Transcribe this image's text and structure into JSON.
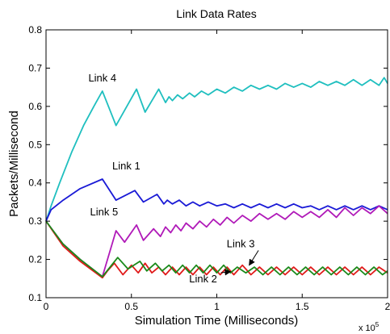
{
  "chart_data": {
    "type": "line",
    "title": "Link Data Rates",
    "xlabel": "Simulation Time (Milliseconds)",
    "ylabel": "Packets/Millisecond",
    "x_multiplier": "x 10",
    "x_multiplier_exp": "5",
    "xlim": [
      0,
      2
    ],
    "ylim": [
      0.1,
      0.8
    ],
    "x_ticks": [
      0,
      0.5,
      1,
      1.5,
      2
    ],
    "x_tick_labels": [
      "0",
      "0.5",
      "1",
      "1.5",
      "2"
    ],
    "y_ticks": [
      0.1,
      0.2,
      0.3,
      0.4,
      0.5,
      0.6,
      0.7,
      0.8
    ],
    "y_tick_labels": [
      "0.1",
      "0.2",
      "0.3",
      "0.4",
      "0.5",
      "0.6",
      "0.7",
      "0.8"
    ],
    "grid": false,
    "series": [
      {
        "name": "Link 4",
        "color": "#1fbfbf",
        "values": [
          [
            0,
            0.3
          ],
          [
            0.03,
            0.34
          ],
          [
            0.08,
            0.4
          ],
          [
            0.15,
            0.48
          ],
          [
            0.22,
            0.55
          ],
          [
            0.28,
            0.6
          ],
          [
            0.33,
            0.64
          ],
          [
            0.41,
            0.55
          ],
          [
            0.53,
            0.645
          ],
          [
            0.58,
            0.585
          ],
          [
            0.66,
            0.645
          ],
          [
            0.7,
            0.61
          ],
          [
            0.72,
            0.625
          ],
          [
            0.74,
            0.615
          ],
          [
            0.77,
            0.63
          ],
          [
            0.8,
            0.62
          ],
          [
            0.84,
            0.635
          ],
          [
            0.87,
            0.625
          ],
          [
            0.91,
            0.64
          ],
          [
            0.95,
            0.63
          ],
          [
            1.0,
            0.645
          ],
          [
            1.05,
            0.635
          ],
          [
            1.1,
            0.65
          ],
          [
            1.15,
            0.64
          ],
          [
            1.2,
            0.655
          ],
          [
            1.25,
            0.645
          ],
          [
            1.3,
            0.655
          ],
          [
            1.35,
            0.645
          ],
          [
            1.4,
            0.66
          ],
          [
            1.45,
            0.65
          ],
          [
            1.5,
            0.66
          ],
          [
            1.55,
            0.65
          ],
          [
            1.6,
            0.665
          ],
          [
            1.65,
            0.655
          ],
          [
            1.7,
            0.665
          ],
          [
            1.75,
            0.655
          ],
          [
            1.8,
            0.67
          ],
          [
            1.85,
            0.655
          ],
          [
            1.9,
            0.67
          ],
          [
            1.95,
            0.655
          ],
          [
            1.98,
            0.675
          ],
          [
            2.0,
            0.66
          ]
        ]
      },
      {
        "name": "Link 1",
        "color": "#1a1ad6",
        "values": [
          [
            0,
            0.3
          ],
          [
            0.03,
            0.33
          ],
          [
            0.1,
            0.355
          ],
          [
            0.2,
            0.385
          ],
          [
            0.33,
            0.41
          ],
          [
            0.41,
            0.355
          ],
          [
            0.52,
            0.38
          ],
          [
            0.57,
            0.35
          ],
          [
            0.65,
            0.37
          ],
          [
            0.69,
            0.345
          ],
          [
            0.71,
            0.355
          ],
          [
            0.74,
            0.345
          ],
          [
            0.78,
            0.355
          ],
          [
            0.82,
            0.34
          ],
          [
            0.86,
            0.35
          ],
          [
            0.9,
            0.34
          ],
          [
            0.95,
            0.35
          ],
          [
            1.0,
            0.34
          ],
          [
            1.05,
            0.345
          ],
          [
            1.1,
            0.335
          ],
          [
            1.15,
            0.345
          ],
          [
            1.2,
            0.335
          ],
          [
            1.25,
            0.345
          ],
          [
            1.3,
            0.335
          ],
          [
            1.35,
            0.345
          ],
          [
            1.4,
            0.335
          ],
          [
            1.45,
            0.345
          ],
          [
            1.5,
            0.335
          ],
          [
            1.55,
            0.34
          ],
          [
            1.6,
            0.33
          ],
          [
            1.65,
            0.34
          ],
          [
            1.7,
            0.33
          ],
          [
            1.75,
            0.34
          ],
          [
            1.8,
            0.33
          ],
          [
            1.85,
            0.34
          ],
          [
            1.9,
            0.33
          ],
          [
            1.95,
            0.34
          ],
          [
            2.0,
            0.33
          ]
        ]
      },
      {
        "name": "Link 5",
        "color": "#b01ab8",
        "values": [
          [
            0,
            0.3
          ],
          [
            0.1,
            0.24
          ],
          [
            0.2,
            0.2
          ],
          [
            0.33,
            0.155
          ],
          [
            0.41,
            0.275
          ],
          [
            0.46,
            0.245
          ],
          [
            0.53,
            0.29
          ],
          [
            0.57,
            0.25
          ],
          [
            0.63,
            0.28
          ],
          [
            0.67,
            0.26
          ],
          [
            0.7,
            0.285
          ],
          [
            0.73,
            0.27
          ],
          [
            0.76,
            0.29
          ],
          [
            0.79,
            0.275
          ],
          [
            0.82,
            0.295
          ],
          [
            0.86,
            0.28
          ],
          [
            0.9,
            0.3
          ],
          [
            0.94,
            0.285
          ],
          [
            0.98,
            0.305
          ],
          [
            1.02,
            0.29
          ],
          [
            1.06,
            0.31
          ],
          [
            1.1,
            0.295
          ],
          [
            1.15,
            0.315
          ],
          [
            1.2,
            0.3
          ],
          [
            1.25,
            0.32
          ],
          [
            1.3,
            0.305
          ],
          [
            1.35,
            0.32
          ],
          [
            1.4,
            0.305
          ],
          [
            1.45,
            0.325
          ],
          [
            1.5,
            0.31
          ],
          [
            1.55,
            0.325
          ],
          [
            1.6,
            0.31
          ],
          [
            1.65,
            0.33
          ],
          [
            1.7,
            0.31
          ],
          [
            1.75,
            0.335
          ],
          [
            1.8,
            0.315
          ],
          [
            1.85,
            0.335
          ],
          [
            1.9,
            0.32
          ],
          [
            1.95,
            0.34
          ],
          [
            2.0,
            0.32
          ]
        ]
      },
      {
        "name": "Link 3",
        "color": "#e01a1a",
        "values": [
          [
            0,
            0.3
          ],
          [
            0.1,
            0.235
          ],
          [
            0.2,
            0.195
          ],
          [
            0.33,
            0.152
          ],
          [
            0.36,
            0.17
          ],
          [
            0.4,
            0.19
          ],
          [
            0.45,
            0.16
          ],
          [
            0.5,
            0.185
          ],
          [
            0.54,
            0.165
          ],
          [
            0.58,
            0.19
          ],
          [
            0.62,
            0.165
          ],
          [
            0.66,
            0.18
          ],
          [
            0.7,
            0.16
          ],
          [
            0.74,
            0.18
          ],
          [
            0.78,
            0.16
          ],
          [
            0.82,
            0.18
          ],
          [
            0.86,
            0.16
          ],
          [
            0.9,
            0.18
          ],
          [
            0.94,
            0.16
          ],
          [
            0.98,
            0.18
          ],
          [
            1.02,
            0.16
          ],
          [
            1.06,
            0.18
          ],
          [
            1.1,
            0.16
          ],
          [
            1.15,
            0.185
          ],
          [
            1.2,
            0.16
          ],
          [
            1.25,
            0.18
          ],
          [
            1.3,
            0.16
          ],
          [
            1.35,
            0.18
          ],
          [
            1.4,
            0.16
          ],
          [
            1.45,
            0.18
          ],
          [
            1.5,
            0.16
          ],
          [
            1.55,
            0.18
          ],
          [
            1.6,
            0.16
          ],
          [
            1.65,
            0.18
          ],
          [
            1.7,
            0.16
          ],
          [
            1.75,
            0.18
          ],
          [
            1.8,
            0.16
          ],
          [
            1.85,
            0.18
          ],
          [
            1.9,
            0.16
          ],
          [
            1.95,
            0.18
          ],
          [
            2.0,
            0.165
          ]
        ]
      },
      {
        "name": "Link 2",
        "color": "#1a8a1a",
        "values": [
          [
            0,
            0.3
          ],
          [
            0.1,
            0.24
          ],
          [
            0.2,
            0.2
          ],
          [
            0.33,
            0.155
          ],
          [
            0.42,
            0.205
          ],
          [
            0.48,
            0.175
          ],
          [
            0.55,
            0.195
          ],
          [
            0.59,
            0.17
          ],
          [
            0.64,
            0.19
          ],
          [
            0.68,
            0.17
          ],
          [
            0.72,
            0.185
          ],
          [
            0.76,
            0.165
          ],
          [
            0.8,
            0.185
          ],
          [
            0.84,
            0.165
          ],
          [
            0.88,
            0.185
          ],
          [
            0.92,
            0.165
          ],
          [
            0.96,
            0.185
          ],
          [
            1.0,
            0.165
          ],
          [
            1.04,
            0.185
          ],
          [
            1.08,
            0.165
          ],
          [
            1.12,
            0.18
          ],
          [
            1.17,
            0.165
          ],
          [
            1.22,
            0.18
          ],
          [
            1.27,
            0.16
          ],
          [
            1.32,
            0.18
          ],
          [
            1.37,
            0.16
          ],
          [
            1.42,
            0.18
          ],
          [
            1.47,
            0.16
          ],
          [
            1.52,
            0.18
          ],
          [
            1.57,
            0.16
          ],
          [
            1.62,
            0.18
          ],
          [
            1.67,
            0.16
          ],
          [
            1.72,
            0.18
          ],
          [
            1.77,
            0.16
          ],
          [
            1.82,
            0.18
          ],
          [
            1.87,
            0.16
          ],
          [
            1.92,
            0.18
          ],
          [
            1.97,
            0.16
          ],
          [
            2.0,
            0.17
          ]
        ]
      }
    ],
    "annotations": [
      {
        "text": "Link 4",
        "x": 0.33,
        "y": 0.665,
        "series": "Link 4",
        "arrow": false
      },
      {
        "text": "Link 1",
        "x": 0.47,
        "y": 0.435,
        "series": "Link 1",
        "arrow": false
      },
      {
        "text": "Link 5",
        "x": 0.34,
        "y": 0.315,
        "series": "Link 5",
        "arrow": false
      },
      {
        "text": "Link 3",
        "x": 1.14,
        "y": 0.232,
        "series": "Link 3",
        "arrow": true,
        "arrow_to": [
          1.19,
          0.185
        ]
      },
      {
        "text": "Link 2",
        "x": 0.92,
        "y": 0.14,
        "series": "Link 2",
        "arrow": true,
        "arrow_to": [
          1.08,
          0.168
        ]
      }
    ]
  }
}
